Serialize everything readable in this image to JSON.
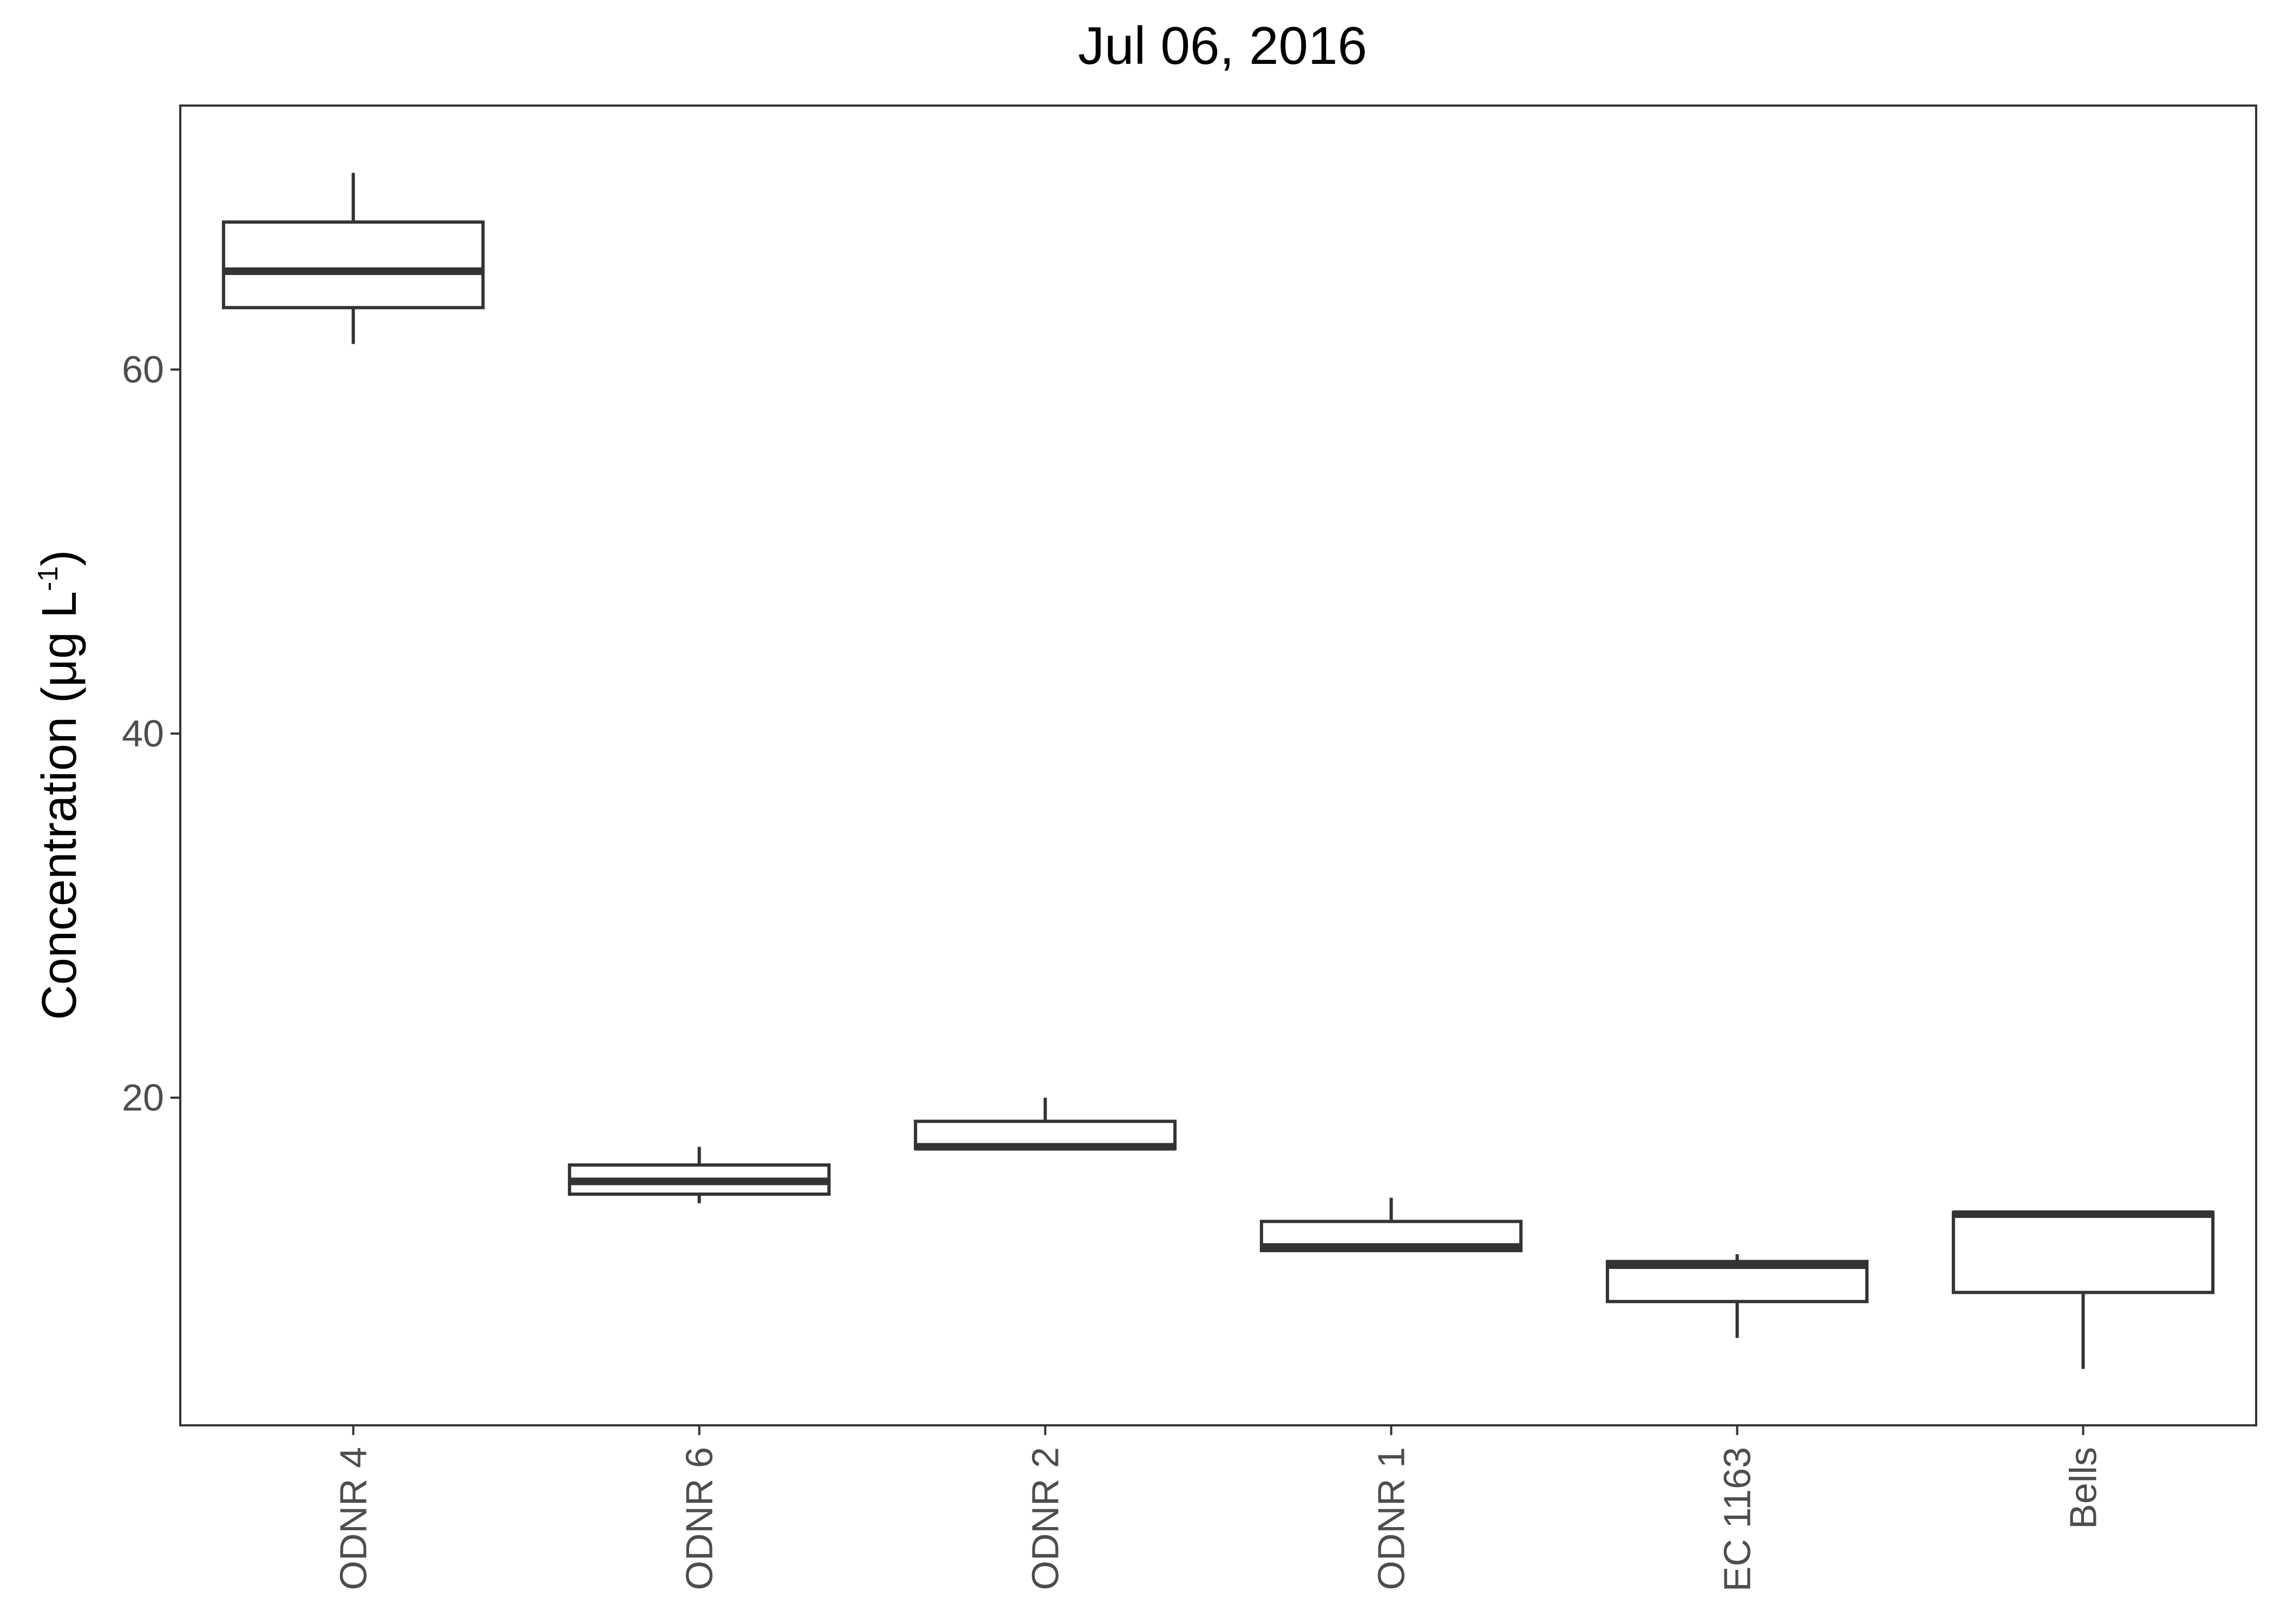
{
  "chart_data": {
    "type": "box",
    "title": "Jul 06, 2016",
    "xlabel": "",
    "ylabel": {
      "main": "Concentration (μg L",
      "superscript": "-1",
      "close": ")"
    },
    "ylim": [
      2.0,
      74.5
    ],
    "yticks": [
      20,
      40,
      60
    ],
    "grid": false,
    "categories": [
      "ODNR 4",
      "ODNR 6",
      "ODNR 2",
      "ODNR 1",
      "EC 1163",
      "Bells"
    ],
    "boxes": [
      {
        "category": "ODNR 4",
        "min": 61.4,
        "q1": 63.4,
        "median": 65.4,
        "q3": 68.1,
        "max": 70.8
      },
      {
        "category": "ODNR 6",
        "min": 14.2,
        "q1": 14.7,
        "median": 15.4,
        "q3": 16.3,
        "max": 17.3
      },
      {
        "category": "ODNR 2",
        "min": 17.2,
        "q1": 17.2,
        "median": 17.3,
        "q3": 18.7,
        "max": 20.0
      },
      {
        "category": "ODNR 1",
        "min": 11.6,
        "q1": 11.6,
        "median": 11.8,
        "q3": 13.2,
        "max": 14.5
      },
      {
        "category": "EC 1163",
        "min": 6.8,
        "q1": 8.8,
        "median": 10.8,
        "q3": 11.0,
        "max": 11.4
      },
      {
        "category": "Bells",
        "min": 5.1,
        "q1": 9.3,
        "median": 13.6,
        "q3": 13.7,
        "max": 13.8
      }
    ],
    "colors": {
      "stroke": "#333333",
      "axis": "#333333",
      "tick_text": "#4d4d4d",
      "fill": "#ffffff"
    }
  }
}
